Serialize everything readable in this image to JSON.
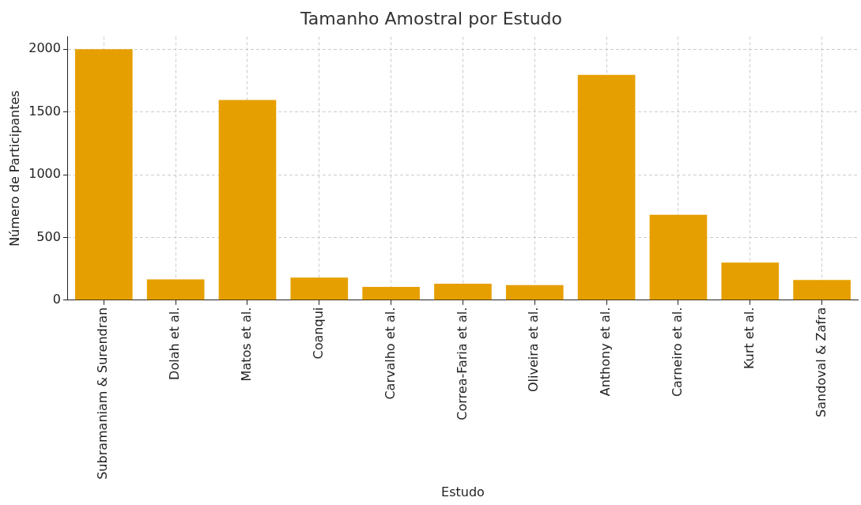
{
  "chart_data": {
    "type": "bar",
    "title": "Tamanho Amostral por Estudo",
    "xlabel": "Estudo",
    "ylabel": "Número de Participantes",
    "categories": [
      "Subramaniam & Surendran",
      "Dolah et al.",
      "Matos et al.",
      "Coanqui",
      "Carvalho et al.",
      "Correa-Faria et al.",
      "Oliveira et al.",
      "Anthony et al.",
      "Carneiro et al.",
      "Kurt et al.",
      "Sandoval & Zafra"
    ],
    "values": [
      2000,
      165,
      1595,
      180,
      105,
      130,
      120,
      1795,
      680,
      300,
      160
    ],
    "color": "#e69f00",
    "ylim": [
      0,
      2100
    ],
    "yticks": [
      0,
      500,
      1000,
      1500,
      2000
    ],
    "grid": true
  }
}
